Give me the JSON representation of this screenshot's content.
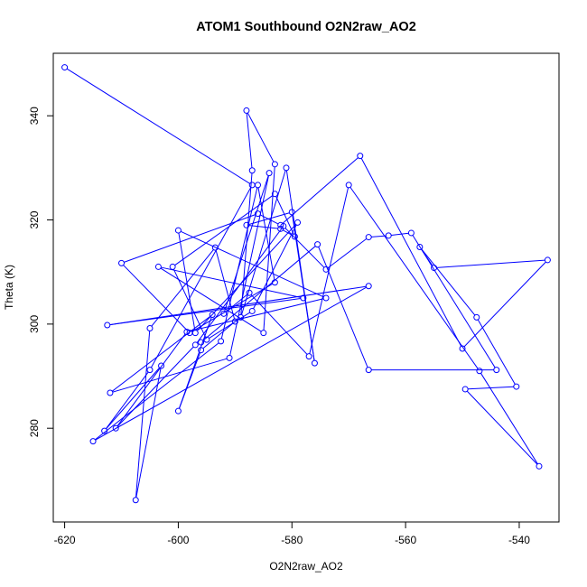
{
  "chart_data": {
    "type": "line",
    "title": "ATOM1 Southbound O2N2raw_AO2",
    "xlabel": "O2N2raw_AO2",
    "ylabel": "Theta (K)",
    "xlim": [
      -622,
      -533
    ],
    "ylim": [
      262,
      352
    ],
    "xticks": [
      -620,
      -600,
      -580,
      -560,
      -540
    ],
    "yticks": [
      280,
      300,
      320,
      340
    ],
    "grid": false,
    "series_color": "#0000ff",
    "marker": "open-circle",
    "points": [
      [
        -620.0,
        349.3
      ],
      [
        -587.0,
        326.7
      ],
      [
        -605.0,
        291.2
      ],
      [
        -613.0,
        279.5
      ],
      [
        -603.0,
        292.0
      ],
      [
        -607.5,
        266.2
      ],
      [
        -605.0,
        299.2
      ],
      [
        -593.5,
        314.7
      ],
      [
        -590.0,
        300.5
      ],
      [
        -596.0,
        295.0
      ],
      [
        -600.0,
        283.3
      ],
      [
        -594.0,
        301.8
      ],
      [
        -612.0,
        286.8
      ],
      [
        -591.0,
        293.5
      ],
      [
        -584.0,
        329.0
      ],
      [
        -592.0,
        302.0
      ],
      [
        -587.5,
        306.0
      ],
      [
        -577.0,
        293.8
      ],
      [
        -570.0,
        326.7
      ],
      [
        -547.0,
        291.0
      ],
      [
        -536.5,
        272.7
      ],
      [
        -549.5,
        287.5
      ],
      [
        -540.5,
        288.0
      ],
      [
        -547.5,
        301.3
      ],
      [
        -557.5,
        314.8
      ],
      [
        -555.0,
        310.8
      ],
      [
        -535.0,
        312.3
      ],
      [
        -550.0,
        295.3
      ],
      [
        -568.0,
        332.3
      ],
      [
        -582.0,
        319.0
      ],
      [
        -586.0,
        321.2
      ],
      [
        -610.0,
        311.7
      ],
      [
        -598.0,
        298.3
      ],
      [
        -583.0,
        308.0
      ],
      [
        -586.0,
        326.7
      ],
      [
        -592.5,
        296.7
      ],
      [
        -615.0,
        277.5
      ],
      [
        -566.5,
        307.3
      ],
      [
        -612.5,
        299.8
      ],
      [
        -578.0,
        305.0
      ],
      [
        -603.5,
        311.0
      ],
      [
        -585.0,
        298.3
      ],
      [
        -583.0,
        330.7
      ],
      [
        -588.0,
        341.0
      ],
      [
        -587.0,
        329.5
      ],
      [
        -589.0,
        301.3
      ],
      [
        -581.0,
        330.0
      ],
      [
        -576.0,
        292.5
      ],
      [
        -580.0,
        321.5
      ],
      [
        -588.0,
        319.0
      ],
      [
        -582.0,
        318.3
      ],
      [
        -579.5,
        316.8
      ],
      [
        -583.0,
        325.0
      ],
      [
        -601.0,
        311.0
      ],
      [
        -595.0,
        297.0
      ],
      [
        -587.0,
        302.5
      ],
      [
        -579.0,
        319.5
      ],
      [
        -597.0,
        298.3
      ],
      [
        -600.0,
        318.0
      ],
      [
        -574.0,
        305.0
      ],
      [
        -598.5,
        298.5
      ],
      [
        -611.0,
        280.0
      ],
      [
        -597.0,
        296.0
      ],
      [
        -581.5,
        318.8
      ],
      [
        -574.0,
        310.5
      ],
      [
        -566.5,
        316.7
      ],
      [
        -563.0,
        317.0
      ],
      [
        -559.0,
        317.5
      ],
      [
        -544.0,
        291.2
      ],
      [
        -566.5,
        291.2
      ],
      [
        -575.5,
        315.3
      ],
      [
        -596.0,
        296.5
      ]
    ]
  }
}
